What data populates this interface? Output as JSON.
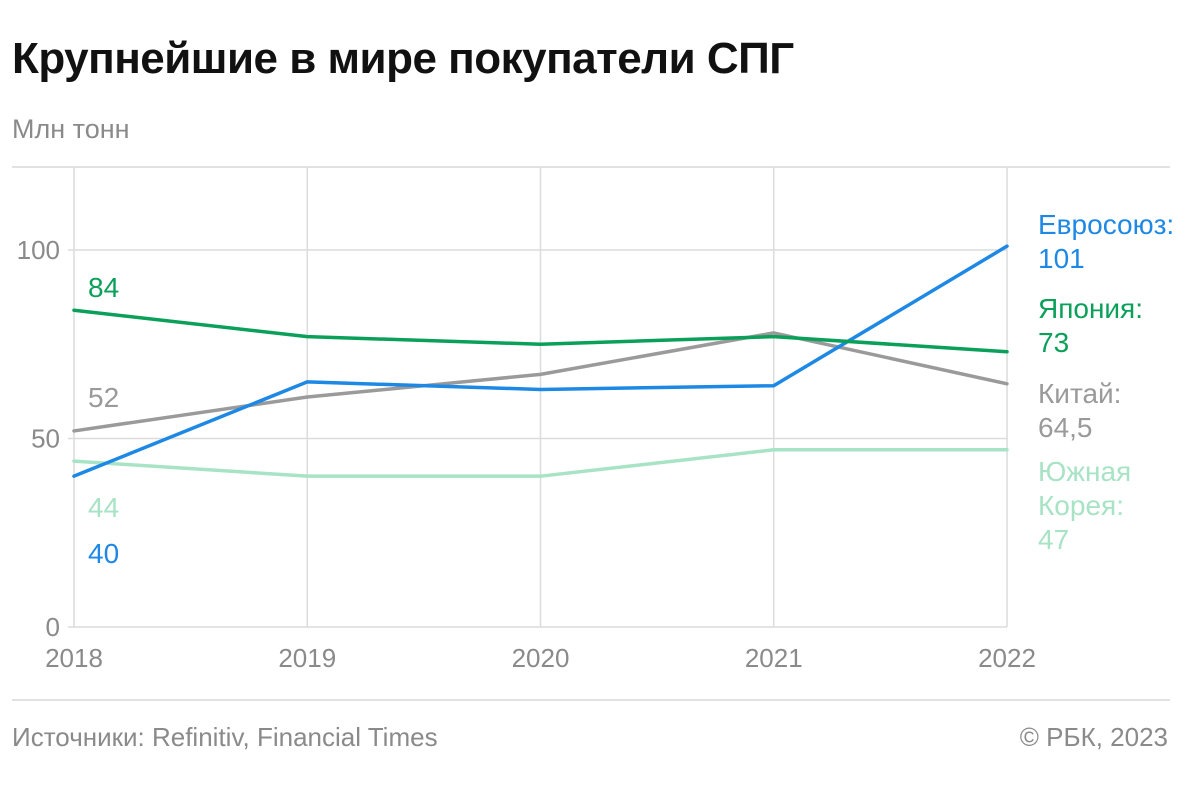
{
  "header": {
    "title": "Крупнейшие в мире покупатели СПГ",
    "unit": "Млн тонн"
  },
  "footer": {
    "source": "Источники: Refinitiv, Financial Times",
    "copyright": "© РБК, 2023"
  },
  "chart_data": {
    "type": "line",
    "x": [
      "2018",
      "2019",
      "2020",
      "2021",
      "2022"
    ],
    "ylim": [
      0,
      122
    ],
    "yticks": [
      "0",
      "50",
      "100"
    ],
    "grid": true,
    "series": [
      {
        "key": "japan",
        "color": "#0aa05a",
        "values": [
          84,
          77,
          75,
          77,
          73
        ],
        "start_label": "84",
        "end_label": [
          "Япония:",
          "73"
        ]
      },
      {
        "key": "china",
        "color": "#9a9a9a",
        "values": [
          52,
          61,
          67,
          78,
          64.5
        ],
        "start_label": "52",
        "end_label": [
          "Китай:",
          "64,5"
        ]
      },
      {
        "key": "eu",
        "color": "#1e88e5",
        "values": [
          40,
          65,
          63,
          64,
          101
        ],
        "start_label": "40",
        "end_label": [
          "Евросоюз:",
          "101"
        ]
      },
      {
        "key": "korea",
        "color": "#a7e3c4",
        "values": [
          44,
          40,
          40,
          47,
          47
        ],
        "start_label": "44",
        "end_label": [
          "Южная",
          "Корея:",
          "47"
        ]
      }
    ]
  }
}
